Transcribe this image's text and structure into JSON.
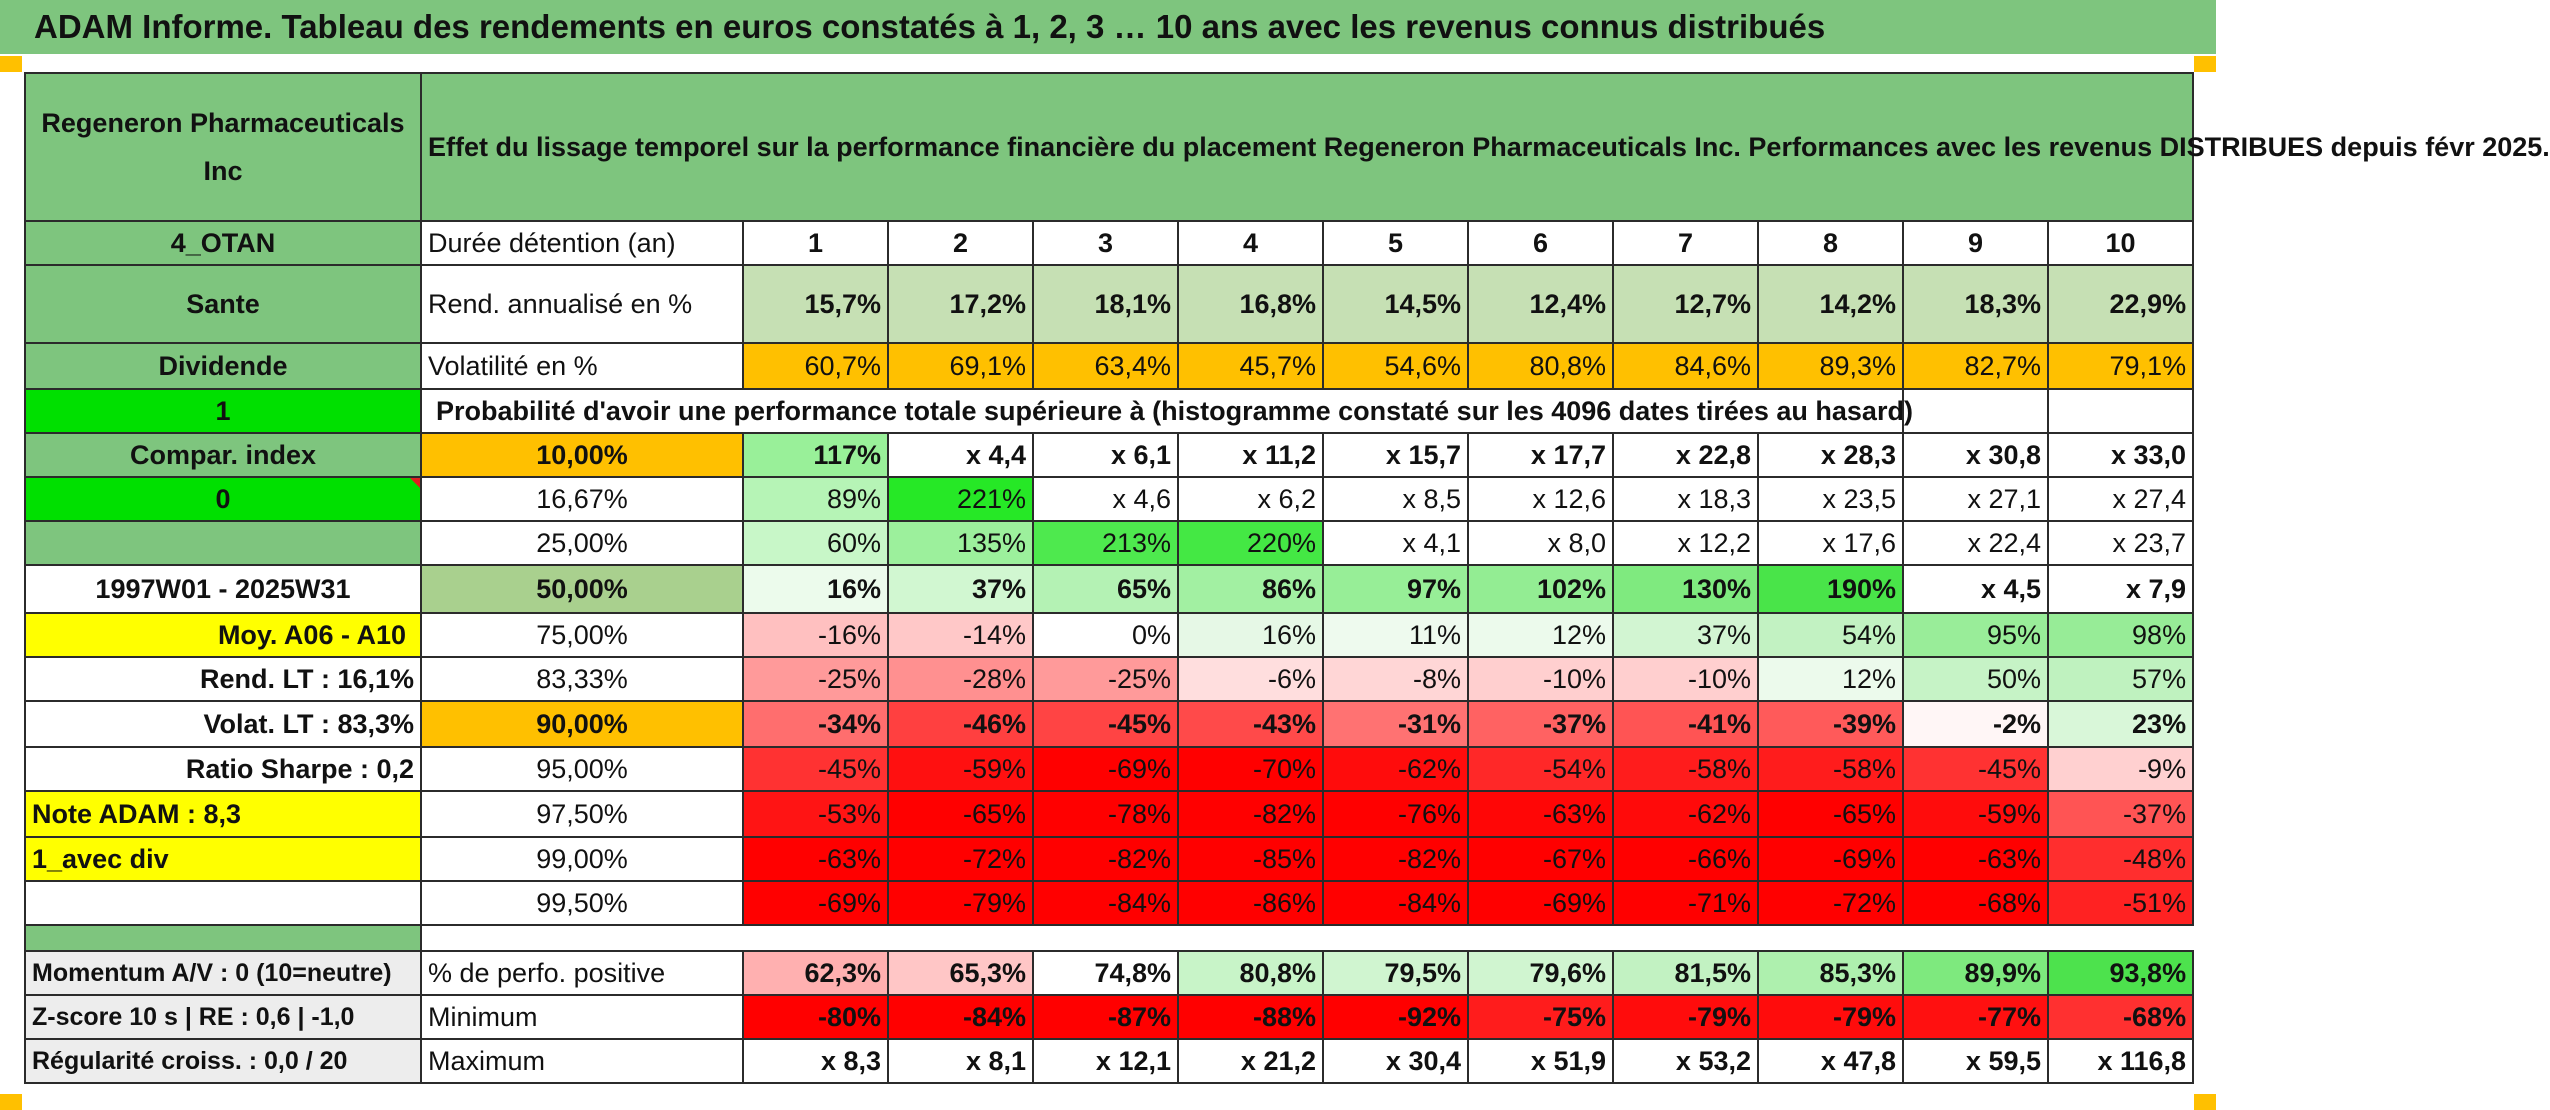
{
  "title": "ADAM Informe. Tableau des rendements en euros constatés à 1, 2, 3 … 10 ans avec les revenus connus distribués",
  "header": {
    "company": "Regeneron Pharmaceuticals Inc",
    "description": "Effet du lissage temporel sur la performance financière du placement Regeneron Pharmaceuticals Inc. Performances avec les revenus DISTRIBUES depuis févr 2025."
  },
  "left": {
    "code": "4_OTAN",
    "sector": "Sante",
    "type": "Dividende",
    "flag1": "1",
    "compar_label": "Compar. index",
    "compar_value": "0",
    "period": "1997W01 - 2025W31",
    "moy": "Moy. A06 - A10",
    "rend_lt": "Rend. LT :   16,1%",
    "volat_lt": "Volat. LT :   83,3%",
    "sharpe": "Ratio Sharpe :    0,2",
    "note": "Note ADAM : 8,3",
    "avec_div": "1_avec div",
    "momentum": "Momentum A/V : 0 (10=neutre)",
    "zscore": "Z-score 10 s | RE : 0,6 | -1,0",
    "regularite": "Régularité croiss. : 0,0 / 20"
  },
  "labels": {
    "duree": "Durée détention (an)",
    "rend": "Rend. annualisé en %",
    "vol": "Volatilité en %",
    "proba": "Probabilité d'avoir une performance totale supérieure à (histogramme constaté sur les 4096 dates tirées au hasard)",
    "positive": "% de perfo. positive",
    "minimum": "Minimum",
    "maximum": "Maximum"
  },
  "years": [
    "1",
    "2",
    "3",
    "4",
    "5",
    "6",
    "7",
    "8",
    "9",
    "10"
  ],
  "rend": [
    "15,7%",
    "17,2%",
    "18,1%",
    "16,8%",
    "14,5%",
    "12,4%",
    "12,7%",
    "14,2%",
    "18,3%",
    "22,9%"
  ],
  "vol": [
    "60,7%",
    "69,1%",
    "63,4%",
    "45,7%",
    "54,6%",
    "80,8%",
    "84,6%",
    "89,3%",
    "82,7%",
    "79,1%"
  ],
  "quantiles": [
    {
      "q": "10,00%",
      "v": [
        "117%",
        "x 4,4",
        "x 6,1",
        "x 11,2",
        "x 15,7",
        "x 17,7",
        "x 22,8",
        "x 28,3",
        "x 30,8",
        "x 33,0"
      ]
    },
    {
      "q": "16,67%",
      "v": [
        "89%",
        "221%",
        "x 4,6",
        "x 6,2",
        "x 8,5",
        "x 12,6",
        "x 18,3",
        "x 23,5",
        "x 27,1",
        "x 27,4"
      ]
    },
    {
      "q": "25,00%",
      "v": [
        "60%",
        "135%",
        "213%",
        "220%",
        "x 4,1",
        "x 8,0",
        "x 12,2",
        "x 17,6",
        "x 22,4",
        "x 23,7"
      ]
    },
    {
      "q": "50,00%",
      "v": [
        "16%",
        "37%",
        "65%",
        "86%",
        "97%",
        "102%",
        "130%",
        "190%",
        "x 4,5",
        "x 7,9"
      ]
    },
    {
      "q": "75,00%",
      "v": [
        "-16%",
        "-14%",
        "0%",
        "16%",
        "11%",
        "12%",
        "37%",
        "54%",
        "95%",
        "98%"
      ]
    },
    {
      "q": "83,33%",
      "v": [
        "-25%",
        "-28%",
        "-25%",
        "-6%",
        "-8%",
        "-10%",
        "-10%",
        "12%",
        "50%",
        "57%"
      ]
    },
    {
      "q": "90,00%",
      "v": [
        "-34%",
        "-46%",
        "-45%",
        "-43%",
        "-31%",
        "-37%",
        "-41%",
        "-39%",
        "-2%",
        "23%"
      ]
    },
    {
      "q": "95,00%",
      "v": [
        "-45%",
        "-59%",
        "-69%",
        "-70%",
        "-62%",
        "-54%",
        "-58%",
        "-58%",
        "-45%",
        "-9%"
      ]
    },
    {
      "q": "97,50%",
      "v": [
        "-53%",
        "-65%",
        "-78%",
        "-82%",
        "-76%",
        "-63%",
        "-62%",
        "-65%",
        "-59%",
        "-37%"
      ]
    },
    {
      "q": "99,00%",
      "v": [
        "-63%",
        "-72%",
        "-82%",
        "-85%",
        "-82%",
        "-67%",
        "-66%",
        "-69%",
        "-63%",
        "-48%"
      ]
    },
    {
      "q": "99,50%",
      "v": [
        "-69%",
        "-79%",
        "-84%",
        "-86%",
        "-84%",
        "-69%",
        "-71%",
        "-72%",
        "-68%",
        "-51%"
      ]
    }
  ],
  "positive": [
    "62,3%",
    "65,3%",
    "74,8%",
    "80,8%",
    "79,5%",
    "79,6%",
    "81,5%",
    "85,3%",
    "89,9%",
    "93,8%"
  ],
  "minimum": [
    "-80%",
    "-84%",
    "-87%",
    "-88%",
    "-92%",
    "-75%",
    "-79%",
    "-79%",
    "-77%",
    "-68%"
  ],
  "maximum": [
    "x 8,3",
    "x 8,1",
    "x 12,1",
    "x 21,2",
    "x 30,4",
    "x 51,9",
    "x 53,2",
    "x 47,8",
    "x 59,5",
    "x 116,8"
  ],
  "colors": {
    "header_green": "#7ec57e",
    "bright_green": "#00e000",
    "orange": "#ffc000",
    "yellow": "#ffff00",
    "red_text": "#d01010",
    "deep_red": "#ff0000"
  },
  "quantile_fills": [
    [
      "#99f099",
      "#ffffff",
      "#ffffff",
      "#ffffff",
      "#ffffff",
      "#ffffff",
      "#ffffff",
      "#ffffff",
      "#ffffff",
      "#ffffff"
    ],
    [
      "#b6f4b6",
      "#26e826",
      "#ffffff",
      "#ffffff",
      "#ffffff",
      "#ffffff",
      "#ffffff",
      "#ffffff",
      "#ffffff",
      "#ffffff"
    ],
    [
      "#c8f7c8",
      "#9cf09c",
      "#4ee94e",
      "#44e844",
      "#ffffff",
      "#ffffff",
      "#ffffff",
      "#ffffff",
      "#ffffff",
      "#ffffff"
    ],
    [
      "#ecfbec",
      "#d1f7d1",
      "#b4f2b4",
      "#a2f0a2",
      "#97ee97",
      "#93ed93",
      "#7fea7f",
      "#49e449",
      "#ffffff",
      "#ffffff"
    ],
    [
      "#ffc0c0",
      "#ffc8c8",
      "#ffffff",
      "#e6f8e6",
      "#eefaee",
      "#ecfaec",
      "#d2f5d2",
      "#c2f2c2",
      "#99ed99",
      "#97ec97"
    ],
    [
      "#ff9a9a",
      "#ff9090",
      "#ff9a9a",
      "#ffdede",
      "#ffd6d6",
      "#ffcfcf",
      "#ffcfcf",
      "#ecfaec",
      "#c6f3c6",
      "#bff2bf"
    ],
    [
      "#ff6e6e",
      "#ff4040",
      "#ff4444",
      "#ff4a4a",
      "#ff7272",
      "#ff6262",
      "#ff5454",
      "#ff5a5a",
      "#fff6f6",
      "#d9f7d9"
    ],
    [
      "#ff3232",
      "#ff1010",
      "#ff0000",
      "#ff0000",
      "#ff0c0c",
      "#ff2828",
      "#ff1c1c",
      "#ff1c1c",
      "#ff3232",
      "#ffd0d0"
    ],
    [
      "#ff1414",
      "#ff0000",
      "#ff0000",
      "#ff0000",
      "#ff0000",
      "#ff0606",
      "#ff0a0a",
      "#ff0000",
      "#ff0c0c",
      "#ff5454"
    ],
    [
      "#ff0000",
      "#ff0000",
      "#ff0000",
      "#ff0000",
      "#ff0000",
      "#ff0000",
      "#ff0000",
      "#ff0000",
      "#ff0000",
      "#ff2e2e"
    ],
    [
      "#ff0000",
      "#ff0000",
      "#ff0000",
      "#ff0000",
      "#ff0000",
      "#ff0000",
      "#ff0000",
      "#ff0000",
      "#ff0000",
      "#ff2222"
    ]
  ],
  "bold_quantile_rows": [
    0,
    3,
    6
  ],
  "rend_fills": [
    "#c6e0b4",
    "#c6e0b4",
    "#c6e0b4",
    "#c6e0b4",
    "#c6e0b4",
    "#c6e0b4",
    "#c6e0b4",
    "#c6e0b4",
    "#c6e0b4",
    "#c6e0b4"
  ],
  "vol_fills": [
    "#ffc000",
    "#ffc000",
    "#ffc000",
    "#ffc000",
    "#ffc000",
    "#ffc000",
    "#ffc000",
    "#ffc000",
    "#ffc000",
    "#ffc000"
  ],
  "positive_fills": [
    "#ffb0b0",
    "#ffc6c6",
    "#ffffff",
    "#c8f4c8",
    "#d0f5d0",
    "#d0f5d0",
    "#c2f2c2",
    "#aef0ae",
    "#7ee97e",
    "#4de24d"
  ],
  "minimum_fills": [
    "#ff0000",
    "#ff0000",
    "#ff0000",
    "#ff0000",
    "#ff0000",
    "#ff1c1c",
    "#ff0c0c",
    "#ff0c0c",
    "#ff1010",
    "#ff3030"
  ]
}
